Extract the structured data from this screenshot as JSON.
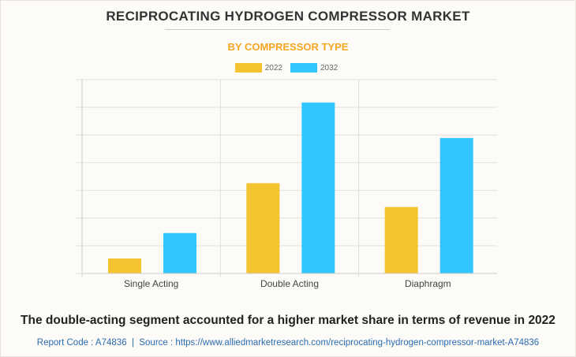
{
  "chart_data": {
    "type": "bar",
    "title": "RECIPROCATING HYDROGEN COMPRESSOR MARKET",
    "subtitle": "BY COMPRESSOR TYPE",
    "categories": [
      "Single Acting",
      "Double Acting",
      "Diaphragm"
    ],
    "series": [
      {
        "name": "2022",
        "color": "#f4c430",
        "values": [
          0.54,
          3.26,
          2.4
        ]
      },
      {
        "name": "2032",
        "color": "#33c5ff",
        "values": [
          1.46,
          6.17,
          4.89
        ]
      }
    ],
    "ylim": [
      0,
      7
    ],
    "xlabel": "",
    "ylabel": "",
    "grid": true,
    "legend": "top-center"
  },
  "footer": {
    "headline": "The double-acting segment accounted for a higher market share in terms of revenue in 2022",
    "source": "Report Code : A74836  |  Source : https://www.alliedmarketresearch.com/reciprocating-hydrogen-compressor-market-A74836"
  }
}
